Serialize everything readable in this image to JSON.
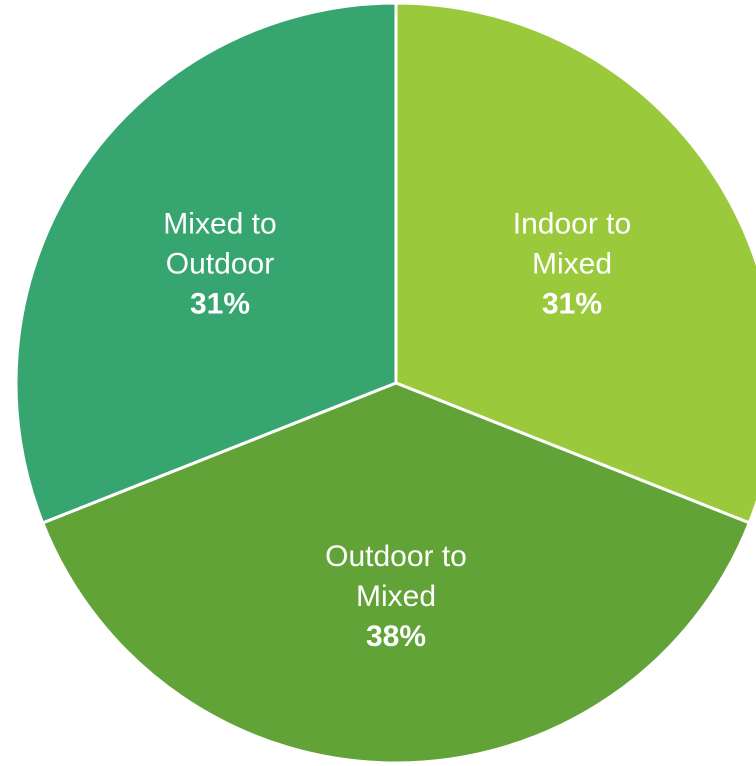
{
  "chart_data": {
    "type": "pie",
    "slices": [
      {
        "label_lines": [
          "Indoor to",
          "Mixed"
        ],
        "value": 31,
        "value_label": "31%",
        "color": "#9aca3c"
      },
      {
        "label_lines": [
          "Outdoor to",
          "Mixed"
        ],
        "value": 38,
        "value_label": "38%",
        "color": "#62a337"
      },
      {
        "label_lines": [
          "Mixed to",
          "Outdoor"
        ],
        "value": 31,
        "value_label": "31%",
        "color": "#37a56f"
      }
    ],
    "start_angle_deg": 0,
    "direction": "clockwise",
    "legend": "none"
  }
}
